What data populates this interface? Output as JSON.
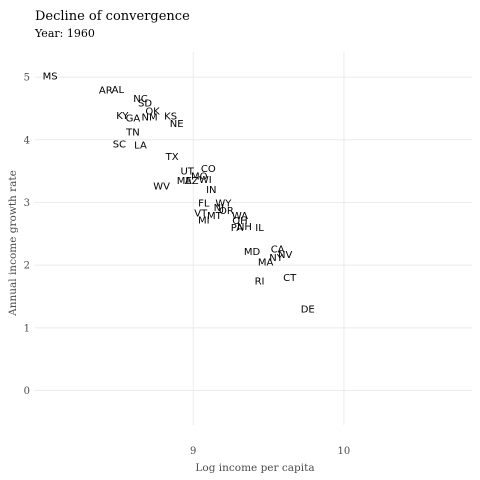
{
  "chart_data": {
    "type": "scatter",
    "title": "Decline of convergence",
    "subtitle": "Year: 1960",
    "xlabel": "Log income per capita",
    "ylabel": "Annual income growth rate",
    "xlim": [
      7.95,
      10.85
    ],
    "ylim": [
      -0.55,
      5.4
    ],
    "xticks": [
      9,
      10
    ],
    "yticks": [
      0,
      1,
      2,
      3,
      4,
      5
    ],
    "grid": true,
    "legend": "none",
    "points": [
      {
        "label": "MS",
        "x": 8.05,
        "y": 5.02
      },
      {
        "label": "AR",
        "x": 8.42,
        "y": 4.79
      },
      {
        "label": "AL",
        "x": 8.5,
        "y": 4.8
      },
      {
        "label": "NC",
        "x": 8.65,
        "y": 4.66
      },
      {
        "label": "SD",
        "x": 8.68,
        "y": 4.59
      },
      {
        "label": "OK",
        "x": 8.73,
        "y": 4.46
      },
      {
        "label": "KY",
        "x": 8.53,
        "y": 4.39
      },
      {
        "label": "GA",
        "x": 8.6,
        "y": 4.35
      },
      {
        "label": "NM",
        "x": 8.71,
        "y": 4.36
      },
      {
        "label": "KS",
        "x": 8.85,
        "y": 4.38
      },
      {
        "label": "NE",
        "x": 8.89,
        "y": 4.26
      },
      {
        "label": "TN",
        "x": 8.6,
        "y": 4.12
      },
      {
        "label": "SC",
        "x": 8.51,
        "y": 3.93
      },
      {
        "label": "LA",
        "x": 8.65,
        "y": 3.92
      },
      {
        "label": "TX",
        "x": 8.86,
        "y": 3.73
      },
      {
        "label": "CO",
        "x": 9.1,
        "y": 3.54
      },
      {
        "label": "UT",
        "x": 8.96,
        "y": 3.5
      },
      {
        "label": "MO",
        "x": 9.04,
        "y": 3.42
      },
      {
        "label": "ME",
        "x": 8.94,
        "y": 3.35
      },
      {
        "label": "AZ",
        "x": 8.99,
        "y": 3.35
      },
      {
        "label": "WI",
        "x": 9.08,
        "y": 3.37
      },
      {
        "label": "WV",
        "x": 8.79,
        "y": 3.26
      },
      {
        "label": "IN",
        "x": 9.12,
        "y": 3.21
      },
      {
        "label": "WY",
        "x": 9.2,
        "y": 2.99
      },
      {
        "label": "FL",
        "x": 9.07,
        "y": 2.99
      },
      {
        "label": "NJ",
        "x": 9.17,
        "y": 2.92
      },
      {
        "label": "OR",
        "x": 9.22,
        "y": 2.87
      },
      {
        "label": "VT",
        "x": 9.05,
        "y": 2.83
      },
      {
        "label": "MT",
        "x": 9.14,
        "y": 2.79
      },
      {
        "label": "WA",
        "x": 9.31,
        "y": 2.79
      },
      {
        "label": "MI",
        "x": 9.07,
        "y": 2.72
      },
      {
        "label": "OH",
        "x": 9.31,
        "y": 2.71
      },
      {
        "label": "PA",
        "x": 9.29,
        "y": 2.6
      },
      {
        "label": "NH",
        "x": 9.34,
        "y": 2.62
      },
      {
        "label": "IL",
        "x": 9.44,
        "y": 2.6
      },
      {
        "label": "MD",
        "x": 9.39,
        "y": 2.22
      },
      {
        "label": "CA",
        "x": 9.56,
        "y": 2.26
      },
      {
        "label": "NV",
        "x": 9.61,
        "y": 2.17
      },
      {
        "label": "NY",
        "x": 9.55,
        "y": 2.12
      },
      {
        "label": "MA",
        "x": 9.48,
        "y": 2.05
      },
      {
        "label": "CT",
        "x": 9.64,
        "y": 1.8
      },
      {
        "label": "RI",
        "x": 9.44,
        "y": 1.75
      },
      {
        "label": "DE",
        "x": 9.76,
        "y": 1.3
      }
    ]
  }
}
